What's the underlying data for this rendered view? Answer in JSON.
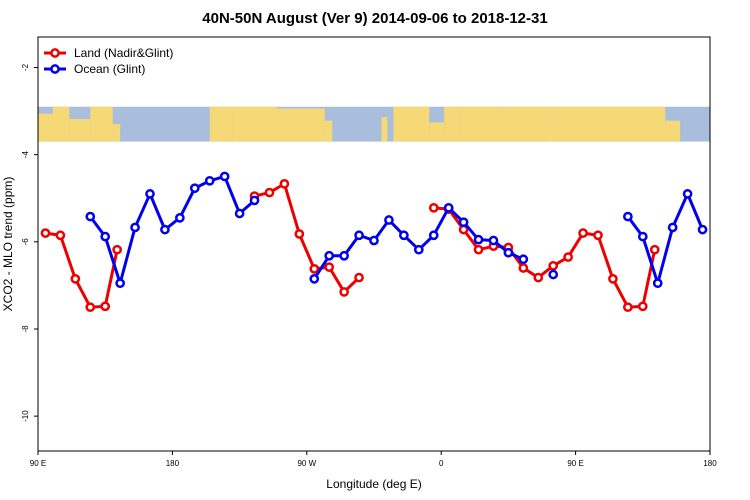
{
  "chart_data": {
    "type": "line",
    "title": "40N-50N August (Ver 9)   2014-09-06 to 2018-12-31",
    "xlabel": "Longitude (deg E)",
    "ylabel": "XCO2 - MLO trend (ppm)",
    "xlim": [
      90,
      540
    ],
    "ylim": [
      -10.8,
      -1.3
    ],
    "x_ticks": [
      {
        "value": 90,
        "label": "90 E"
      },
      {
        "value": 180,
        "label": "180"
      },
      {
        "value": 270,
        "label": "90 W"
      },
      {
        "value": 360,
        "label": "0"
      },
      {
        "value": 450,
        "label": "90 E"
      },
      {
        "value": 540,
        "label": "180"
      }
    ],
    "y_ticks": [
      {
        "value": -2,
        "label": "-2"
      },
      {
        "value": -4,
        "label": "-4"
      },
      {
        "value": -6,
        "label": "-6"
      },
      {
        "value": -8,
        "label": "-8"
      },
      {
        "value": -10,
        "label": "-10"
      }
    ],
    "map_band": {
      "ymin": -3.7,
      "ymax": -2.9,
      "ocean_color": "#a9bedd",
      "land_color": "#f6d977"
    },
    "legend_position": "top-left",
    "series": [
      {
        "name": "Land (Nadir&Glint)",
        "color": "#ee0000",
        "segments": [
          [
            [
              95,
              -5.8
            ],
            [
              105,
              -5.85
            ],
            [
              115,
              -6.85
            ],
            [
              125,
              -7.5
            ],
            [
              135,
              -7.48
            ],
            [
              143,
              -6.18
            ]
          ],
          [
            [
              235,
              -4.95
            ],
            [
              245,
              -4.87
            ],
            [
              255,
              -4.67
            ],
            [
              265,
              -5.82
            ],
            [
              275,
              -6.62
            ],
            [
              285,
              -6.58
            ],
            [
              295,
              -7.15
            ],
            [
              305,
              -6.82
            ]
          ],
          [
            [
              355,
              -5.22
            ],
            [
              365,
              -5.25
            ],
            [
              375,
              -5.72
            ],
            [
              385,
              -6.18
            ],
            [
              395,
              -6.1
            ],
            [
              405,
              -6.13
            ],
            [
              415,
              -6.6
            ],
            [
              425,
              -6.82
            ],
            [
              435,
              -6.55
            ],
            [
              445,
              -6.35
            ],
            [
              455,
              -5.8
            ],
            [
              465,
              -5.85
            ],
            [
              475,
              -6.85
            ],
            [
              485,
              -7.5
            ],
            [
              495,
              -7.48
            ],
            [
              503,
              -6.18
            ]
          ]
        ]
      },
      {
        "name": "Ocean (Glint)",
        "color": "#0000ee",
        "segments": [
          [
            [
              125,
              -5.42
            ],
            [
              135,
              -5.88
            ],
            [
              145,
              -6.95
            ],
            [
              155,
              -5.67
            ],
            [
              165,
              -4.9
            ],
            [
              175,
              -5.72
            ],
            [
              185,
              -5.45
            ],
            [
              195,
              -4.77
            ],
            [
              205,
              -4.6
            ],
            [
              215,
              -4.5
            ],
            [
              225,
              -5.35
            ],
            [
              235,
              -5.05
            ]
          ],
          [
            [
              275,
              -6.85
            ],
            [
              285,
              -6.32
            ],
            [
              295,
              -6.32
            ],
            [
              305,
              -5.85
            ],
            [
              315,
              -5.97
            ],
            [
              325,
              -5.5
            ],
            [
              335,
              -5.85
            ],
            [
              345,
              -6.18
            ],
            [
              355,
              -5.85
            ],
            [
              365,
              -5.22
            ],
            [
              375,
              -5.55
            ],
            [
              385,
              -5.95
            ],
            [
              395,
              -5.97
            ],
            [
              405,
              -6.25
            ],
            [
              415,
              -6.4
            ]
          ],
          [
            [
              435,
              -6.75
            ]
          ],
          [
            [
              485,
              -5.42
            ],
            [
              495,
              -5.88
            ],
            [
              505,
              -6.95
            ],
            [
              515,
              -5.67
            ],
            [
              525,
              -4.9
            ],
            [
              535,
              -5.72
            ]
          ]
        ]
      }
    ]
  }
}
